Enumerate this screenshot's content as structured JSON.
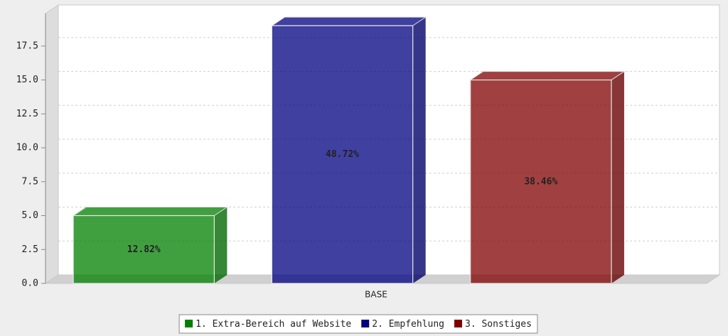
{
  "chart_data": {
    "type": "bar3d",
    "categories": [
      "BASE"
    ],
    "series": [
      {
        "name": "1. Extra-Bereich auf Website",
        "color": "#008000",
        "values": [
          5
        ],
        "value_labels": [
          "12.82%"
        ]
      },
      {
        "name": "2. Empfehlung",
        "color": "#000080",
        "values": [
          19
        ],
        "value_labels": [
          "48.72%"
        ]
      },
      {
        "name": "3. Sonstiges",
        "color": "#800000",
        "values": [
          15
        ],
        "value_labels": [
          "38.46%"
        ]
      }
    ],
    "ylim": [
      0,
      19.9
    ],
    "yticks": [
      {
        "value": 0,
        "label": "0.0"
      },
      2.5,
      {
        "value": 5,
        "label": "5.0"
      },
      7.5,
      {
        "value": 10,
        "label": "10.0"
      },
      12.5,
      {
        "value": 15,
        "label": "15.0"
      },
      17.5
    ],
    "grid": true,
    "legend": "bottom"
  }
}
